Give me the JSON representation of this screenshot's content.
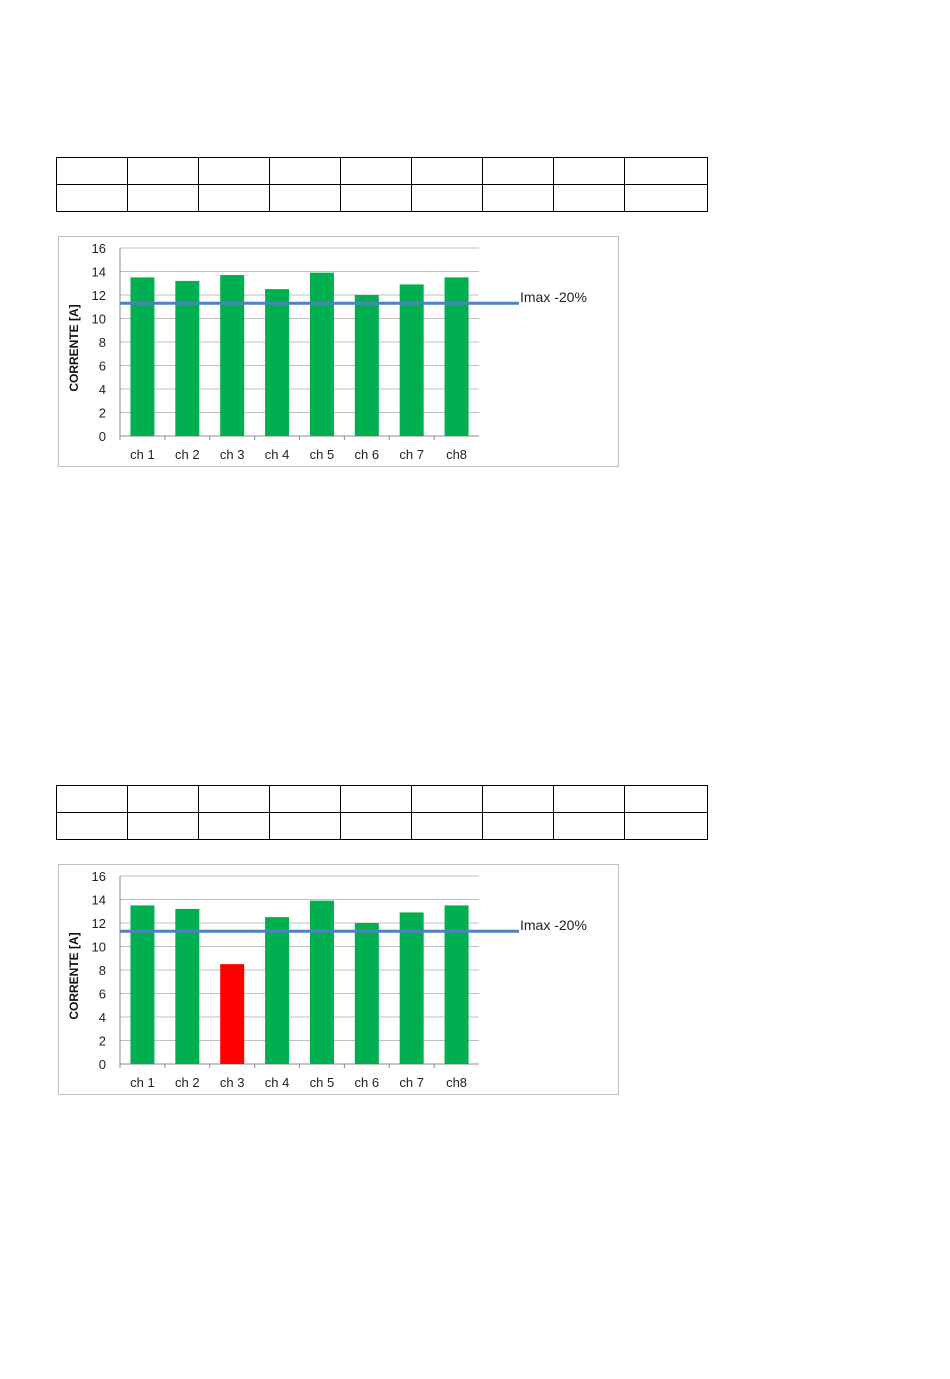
{
  "tables": [
    {
      "rows": 2,
      "cols": 9
    },
    {
      "rows": 2,
      "cols": 9
    }
  ],
  "colors": {
    "ok": "#00b050",
    "fault": "#ff0000",
    "reference_line": "#4f81bd",
    "grid": "#bfbfbf"
  },
  "chart_data": [
    {
      "type": "bar",
      "categories": [
        "ch 1",
        "ch 2",
        "ch 3",
        "ch 4",
        "ch 5",
        "ch 6",
        "ch 7",
        "ch8"
      ],
      "values": [
        13.5,
        13.2,
        13.7,
        12.5,
        13.9,
        12.0,
        12.9,
        13.5
      ],
      "bar_colors": [
        "#00b050",
        "#00b050",
        "#00b050",
        "#00b050",
        "#00b050",
        "#00b050",
        "#00b050",
        "#00b050"
      ],
      "ylabel": "CORRENTE [A]",
      "ylim": [
        0,
        16
      ],
      "yticks": [
        0,
        2,
        4,
        6,
        8,
        10,
        12,
        14,
        16
      ],
      "grid": true,
      "reference_line": {
        "label": "Imax -20%",
        "value": 11.3
      }
    },
    {
      "type": "bar",
      "categories": [
        "ch 1",
        "ch 2",
        "ch 3",
        "ch 4",
        "ch 5",
        "ch 6",
        "ch 7",
        "ch8"
      ],
      "values": [
        13.5,
        13.2,
        8.5,
        12.5,
        13.9,
        12.0,
        12.9,
        13.5
      ],
      "bar_colors": [
        "#00b050",
        "#00b050",
        "#ff0000",
        "#00b050",
        "#00b050",
        "#00b050",
        "#00b050",
        "#00b050"
      ],
      "ylabel": "CORRENTE [A]",
      "ylim": [
        0,
        16
      ],
      "yticks": [
        0,
        2,
        4,
        6,
        8,
        10,
        12,
        14,
        16
      ],
      "grid": true,
      "reference_line": {
        "label": "Imax -20%",
        "value": 11.3
      }
    }
  ]
}
